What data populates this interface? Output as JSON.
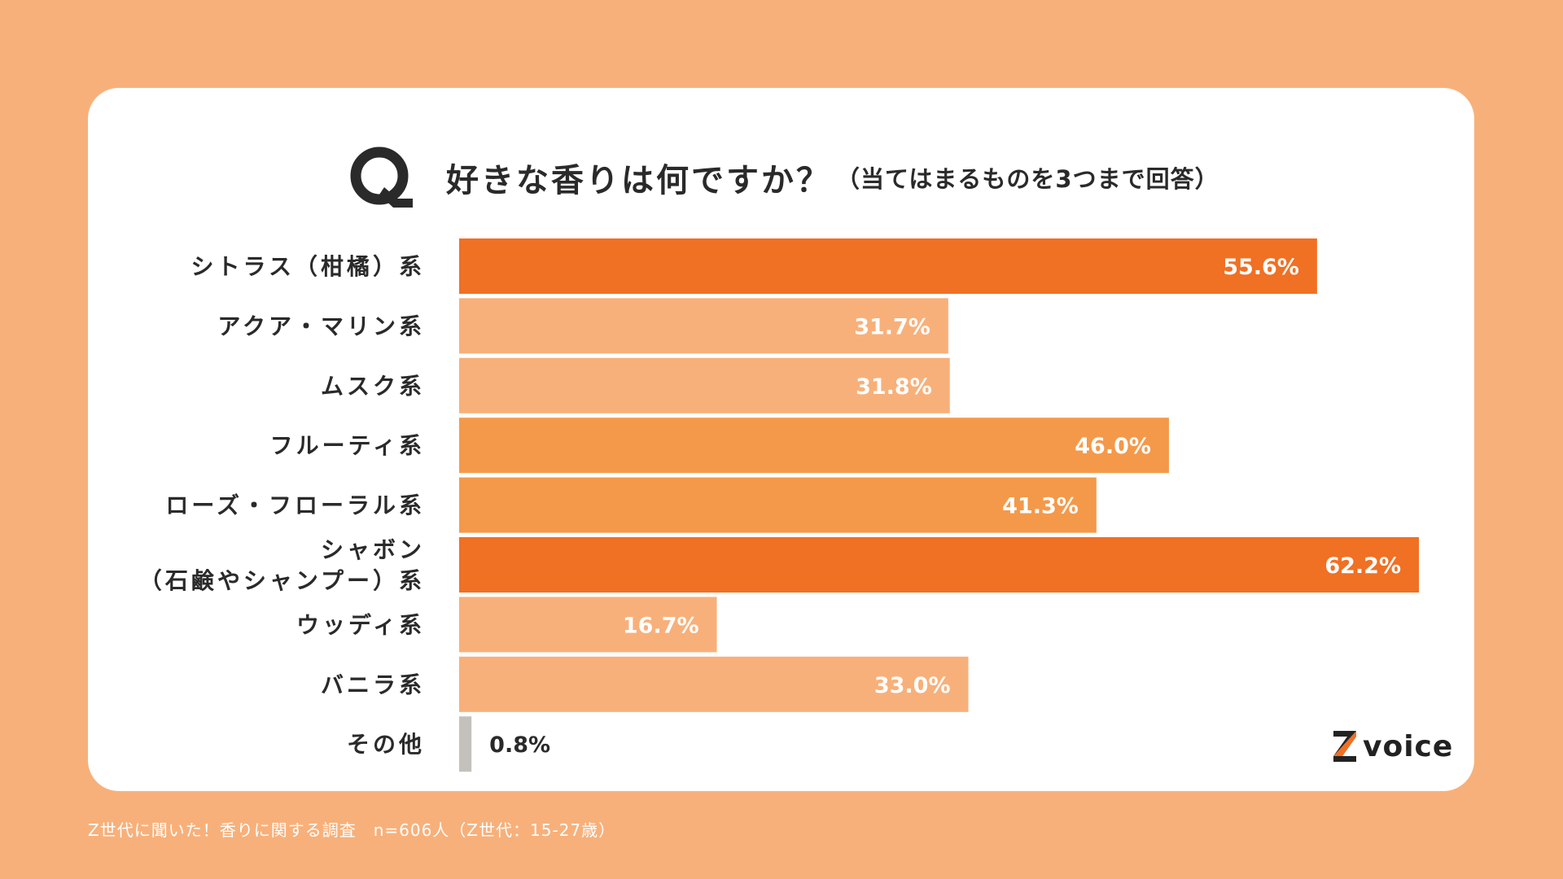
{
  "title": {
    "q_letter": "Q",
    "main": "好きな香りは何ですか？",
    "sub": "（当てはまるものを3つまで回答）"
  },
  "colors": {
    "page_bg": "#f8b07a",
    "card_bg": "#ffffff",
    "dark": "#2a2a2a",
    "logo_accent": "#f07024"
  },
  "chart_data": {
    "type": "bar",
    "orientation": "horizontal",
    "title": "好きな香りは何ですか？（当てはまるものを3つまで回答）",
    "xlabel": "",
    "ylabel": "",
    "xlim": [
      0,
      62.2
    ],
    "grid": false,
    "legend": "none",
    "unit": "%",
    "categories": [
      [
        "シトラス（柑橘）系"
      ],
      [
        "アクア・マリン系"
      ],
      [
        "ムスク系"
      ],
      [
        "フルーティ系"
      ],
      [
        "ローズ・フローラル系"
      ],
      [
        "シャボン",
        "（石鹸やシャンプー）系"
      ],
      [
        "ウッディ系"
      ],
      [
        "バニラ系"
      ],
      [
        "その他"
      ]
    ],
    "values": [
      55.6,
      31.7,
      31.8,
      46.0,
      41.3,
      62.2,
      16.7,
      33.0,
      0.8
    ],
    "value_labels": [
      "55.6%",
      "31.7%",
      "31.8%",
      "46.0%",
      "41.3%",
      "62.2%",
      "16.7%",
      "33.0%",
      "0.8%"
    ],
    "bar_colors": [
      "#f07024",
      "#f8b07a",
      "#f8b07a",
      "#f4994a",
      "#f4994a",
      "#f07024",
      "#f8b07a",
      "#f8b07a",
      "#c4c1bd"
    ],
    "label_colors": [
      "#ffffff",
      "#ffffff",
      "#ffffff",
      "#ffffff",
      "#ffffff",
      "#ffffff",
      "#ffffff",
      "#ffffff",
      "#2a2a2a"
    ]
  },
  "logo": {
    "text": "voice"
  },
  "footer": {
    "note": "Z世代に聞いた！香りに関する調査　n=606人（Z世代：15-27歳）"
  }
}
